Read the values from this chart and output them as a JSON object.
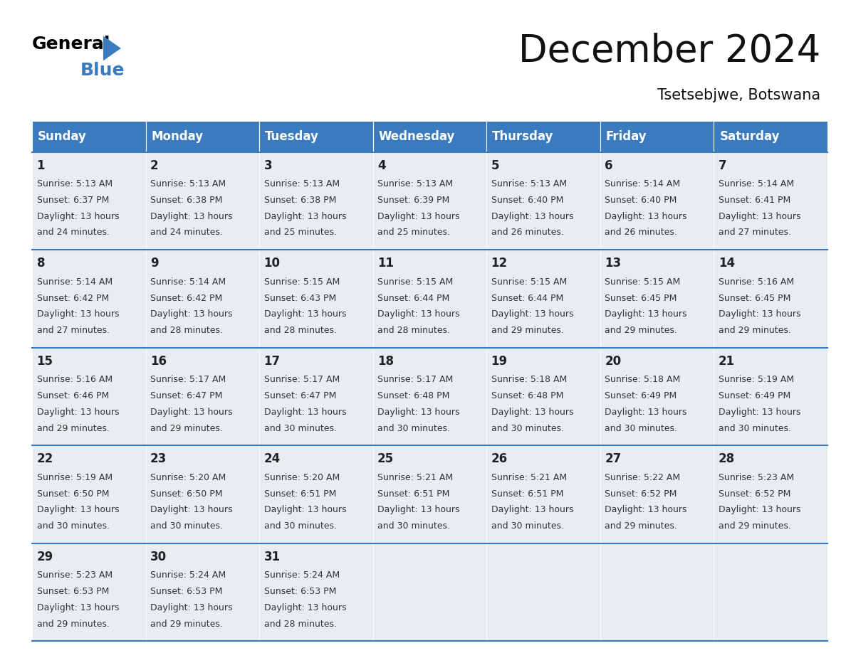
{
  "title": "December 2024",
  "subtitle": "Tsetsebjwe, Botswana",
  "header_color": "#3a7abf",
  "header_text_color": "#ffffff",
  "cell_bg_color": "#e8edf2",
  "border_color": "#3a7abf",
  "days_of_week": [
    "Sunday",
    "Monday",
    "Tuesday",
    "Wednesday",
    "Thursday",
    "Friday",
    "Saturday"
  ],
  "calendar_data": [
    [
      {
        "day": 1,
        "sunrise": "5:13 AM",
        "sunset": "6:37 PM",
        "daylight": "13 hours and 24 minutes."
      },
      {
        "day": 2,
        "sunrise": "5:13 AM",
        "sunset": "6:38 PM",
        "daylight": "13 hours and 24 minutes."
      },
      {
        "day": 3,
        "sunrise": "5:13 AM",
        "sunset": "6:38 PM",
        "daylight": "13 hours and 25 minutes."
      },
      {
        "day": 4,
        "sunrise": "5:13 AM",
        "sunset": "6:39 PM",
        "daylight": "13 hours and 25 minutes."
      },
      {
        "day": 5,
        "sunrise": "5:13 AM",
        "sunset": "6:40 PM",
        "daylight": "13 hours and 26 minutes."
      },
      {
        "day": 6,
        "sunrise": "5:14 AM",
        "sunset": "6:40 PM",
        "daylight": "13 hours and 26 minutes."
      },
      {
        "day": 7,
        "sunrise": "5:14 AM",
        "sunset": "6:41 PM",
        "daylight": "13 hours and 27 minutes."
      }
    ],
    [
      {
        "day": 8,
        "sunrise": "5:14 AM",
        "sunset": "6:42 PM",
        "daylight": "13 hours and 27 minutes."
      },
      {
        "day": 9,
        "sunrise": "5:14 AM",
        "sunset": "6:42 PM",
        "daylight": "13 hours and 28 minutes."
      },
      {
        "day": 10,
        "sunrise": "5:15 AM",
        "sunset": "6:43 PM",
        "daylight": "13 hours and 28 minutes."
      },
      {
        "day": 11,
        "sunrise": "5:15 AM",
        "sunset": "6:44 PM",
        "daylight": "13 hours and 28 minutes."
      },
      {
        "day": 12,
        "sunrise": "5:15 AM",
        "sunset": "6:44 PM",
        "daylight": "13 hours and 29 minutes."
      },
      {
        "day": 13,
        "sunrise": "5:15 AM",
        "sunset": "6:45 PM",
        "daylight": "13 hours and 29 minutes."
      },
      {
        "day": 14,
        "sunrise": "5:16 AM",
        "sunset": "6:45 PM",
        "daylight": "13 hours and 29 minutes."
      }
    ],
    [
      {
        "day": 15,
        "sunrise": "5:16 AM",
        "sunset": "6:46 PM",
        "daylight": "13 hours and 29 minutes."
      },
      {
        "day": 16,
        "sunrise": "5:17 AM",
        "sunset": "6:47 PM",
        "daylight": "13 hours and 29 minutes."
      },
      {
        "day": 17,
        "sunrise": "5:17 AM",
        "sunset": "6:47 PM",
        "daylight": "13 hours and 30 minutes."
      },
      {
        "day": 18,
        "sunrise": "5:17 AM",
        "sunset": "6:48 PM",
        "daylight": "13 hours and 30 minutes."
      },
      {
        "day": 19,
        "sunrise": "5:18 AM",
        "sunset": "6:48 PM",
        "daylight": "13 hours and 30 minutes."
      },
      {
        "day": 20,
        "sunrise": "5:18 AM",
        "sunset": "6:49 PM",
        "daylight": "13 hours and 30 minutes."
      },
      {
        "day": 21,
        "sunrise": "5:19 AM",
        "sunset": "6:49 PM",
        "daylight": "13 hours and 30 minutes."
      }
    ],
    [
      {
        "day": 22,
        "sunrise": "5:19 AM",
        "sunset": "6:50 PM",
        "daylight": "13 hours and 30 minutes."
      },
      {
        "day": 23,
        "sunrise": "5:20 AM",
        "sunset": "6:50 PM",
        "daylight": "13 hours and 30 minutes."
      },
      {
        "day": 24,
        "sunrise": "5:20 AM",
        "sunset": "6:51 PM",
        "daylight": "13 hours and 30 minutes."
      },
      {
        "day": 25,
        "sunrise": "5:21 AM",
        "sunset": "6:51 PM",
        "daylight": "13 hours and 30 minutes."
      },
      {
        "day": 26,
        "sunrise": "5:21 AM",
        "sunset": "6:51 PM",
        "daylight": "13 hours and 30 minutes."
      },
      {
        "day": 27,
        "sunrise": "5:22 AM",
        "sunset": "6:52 PM",
        "daylight": "13 hours and 29 minutes."
      },
      {
        "day": 28,
        "sunrise": "5:23 AM",
        "sunset": "6:52 PM",
        "daylight": "13 hours and 29 minutes."
      }
    ],
    [
      {
        "day": 29,
        "sunrise": "5:23 AM",
        "sunset": "6:53 PM",
        "daylight": "13 hours and 29 minutes."
      },
      {
        "day": 30,
        "sunrise": "5:24 AM",
        "sunset": "6:53 PM",
        "daylight": "13 hours and 29 minutes."
      },
      {
        "day": 31,
        "sunrise": "5:24 AM",
        "sunset": "6:53 PM",
        "daylight": "13 hours and 28 minutes."
      },
      null,
      null,
      null,
      null
    ]
  ],
  "logo_text_general": "General",
  "logo_text_blue": "Blue",
  "logo_color_general": "#000000",
  "logo_color_blue": "#3a7abf",
  "logo_triangle_color": "#3a7abf",
  "title_fontsize": 38,
  "subtitle_fontsize": 15,
  "header_fontsize": 12,
  "day_num_fontsize": 12,
  "cell_text_fontsize": 9
}
